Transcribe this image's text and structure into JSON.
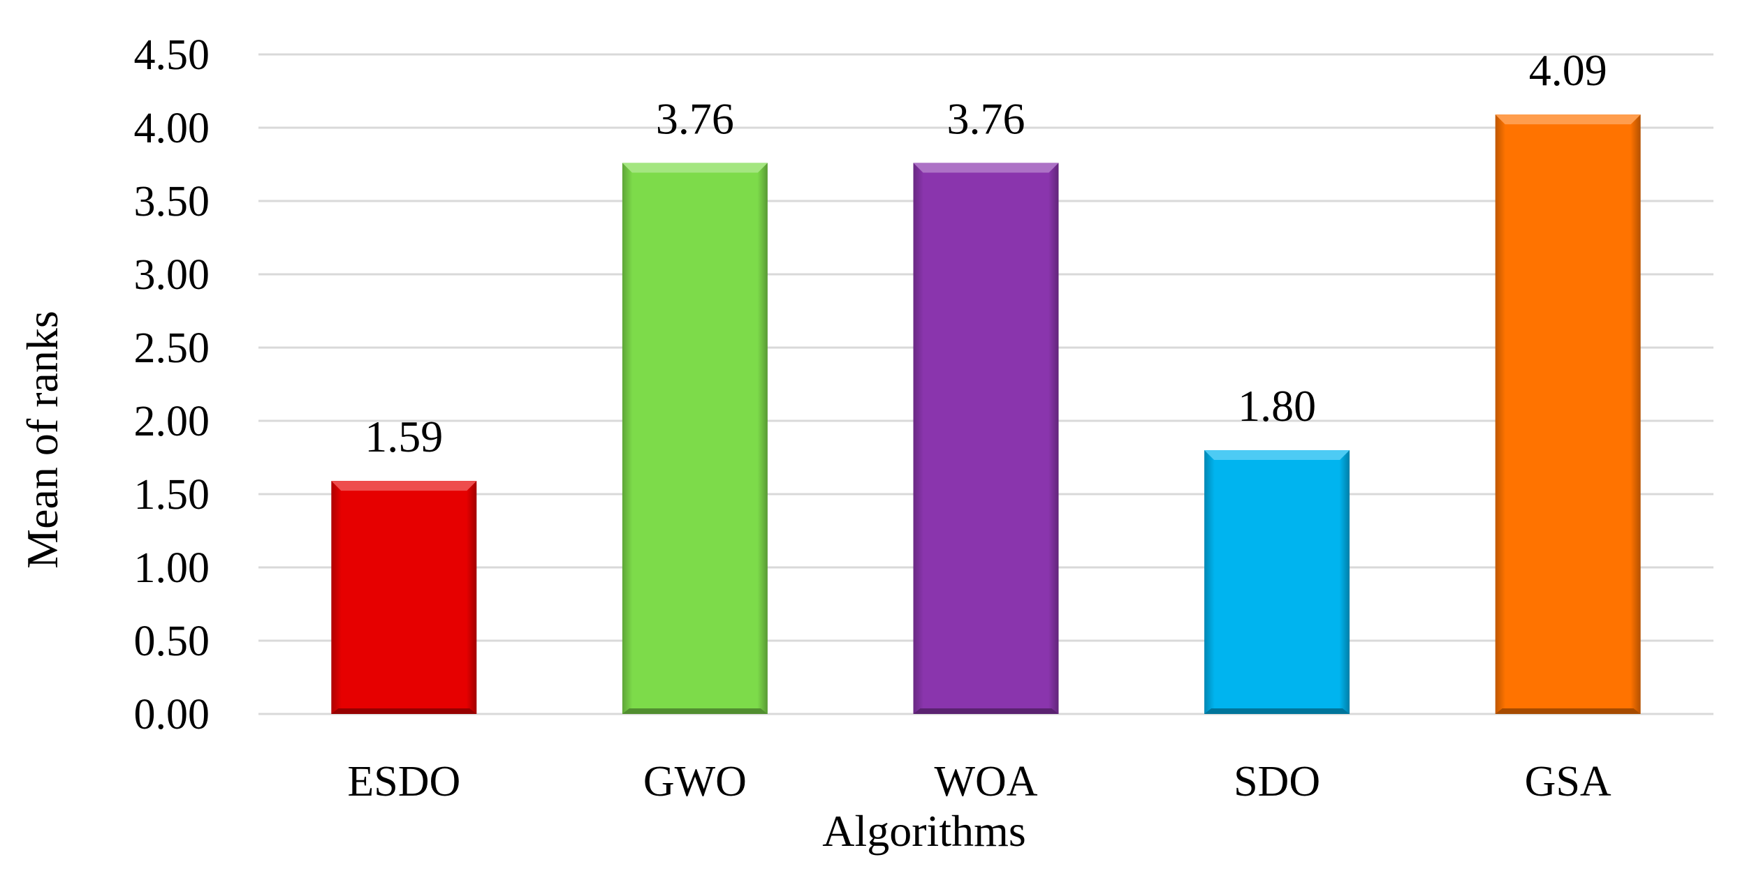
{
  "chart_data": {
    "type": "bar",
    "categories": [
      "ESDO",
      "GWO",
      "WOA",
      "SDO",
      "GSA"
    ],
    "values": [
      1.59,
      3.76,
      3.76,
      1.8,
      4.09
    ],
    "value_labels": [
      "1.59",
      "3.76",
      "3.76",
      "1.80",
      "4.09"
    ],
    "colors": [
      "#e60000",
      "#7ddb4a",
      "#8a35ad",
      "#00b4ef",
      "#ff7300"
    ],
    "title": "",
    "xlabel": "Algorithms",
    "ylabel": "Mean of ranks",
    "ylim": [
      0,
      4.5
    ],
    "yticks": [
      0,
      0.5,
      1,
      1.5,
      2,
      2.5,
      3,
      3.5,
      4,
      4.5
    ],
    "ytick_labels": [
      "0.00",
      "0.50",
      "1.00",
      "1.50",
      "2.00",
      "2.50",
      "3.00",
      "3.50",
      "4.00",
      "4.50"
    ],
    "grid": true,
    "legend": "none",
    "gridline_color": "#d9d9d9"
  }
}
